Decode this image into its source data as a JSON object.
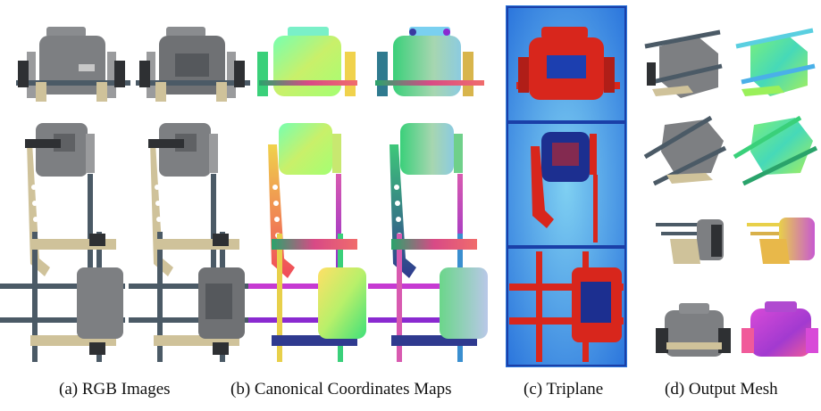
{
  "figure": {
    "captions": {
      "a": "(a) RGB Images",
      "b": "(b) Canonical Coordinates Maps",
      "c": "(c) Triplane",
      "d": "(d) Output Mesh"
    },
    "colors": {
      "robot_gray": "#7d7f82",
      "robot_dark": "#2e3033",
      "rod_blue": "#4b5a66",
      "tan_bar": "#cfc29a",
      "ccm_green": "#5ee37a",
      "ccm_magenta": "#c63ad2",
      "triplane_blue": "#1c5fd6",
      "triplane_red": "#d8261c",
      "triplane_cyan": "#8fd7f2"
    }
  }
}
